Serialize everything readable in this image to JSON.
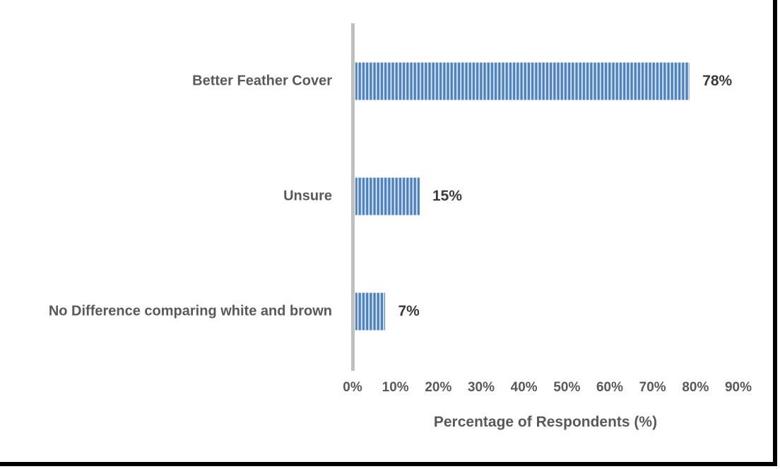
{
  "chart_data": {
    "type": "bar",
    "orientation": "horizontal",
    "title": "",
    "categories": [
      "Better Feather Cover",
      "Unsure",
      "No Difference comparing white and brown"
    ],
    "values": [
      78,
      15,
      7
    ],
    "value_labels": [
      "78%",
      "15%",
      "7%"
    ],
    "xlabel": "Percentage of Respondents (%)",
    "ylabel": "",
    "xlim": [
      0,
      90
    ],
    "x_ticks": [
      "0%",
      "10%",
      "20%",
      "30%",
      "40%",
      "50%",
      "60%",
      "70%",
      "80%",
      "90%"
    ],
    "grid": false,
    "legend": false,
    "bar_fill_style": "vertical-stripe-pattern",
    "colors": {
      "bar_stripe_dark": "#4a80be",
      "bar_stripe_light": "#dfe9f5",
      "axis_line": "#bfbfbf",
      "label_text": "#595959",
      "value_text": "#3a3a3a",
      "frame_border": "#000000",
      "background": "#ffffff"
    }
  }
}
